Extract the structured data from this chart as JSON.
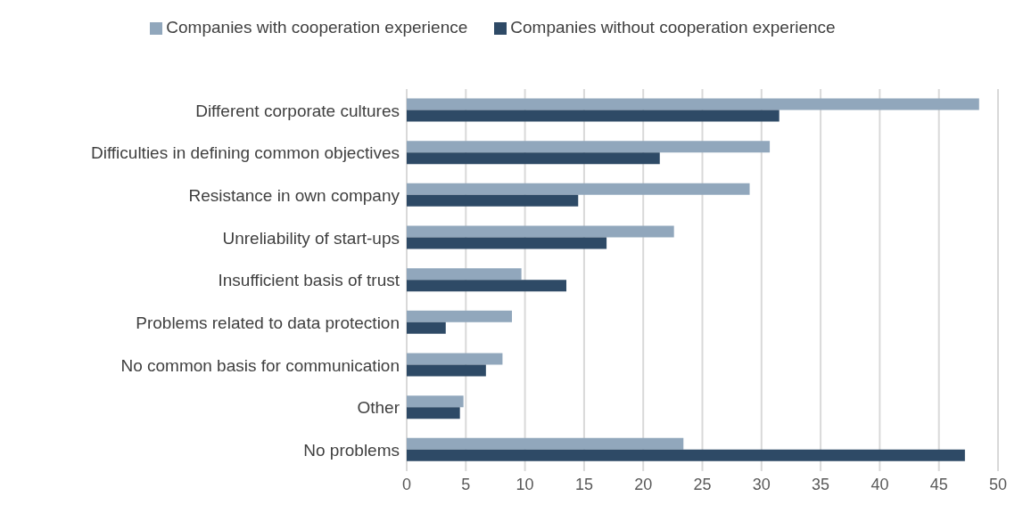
{
  "chart_data": {
    "type": "bar",
    "orientation": "horizontal",
    "categories": [
      "Different corporate cultures",
      "Difficulties in defining common objectives",
      "Resistance in own company",
      "Unreliability of start-ups",
      "Insufficient basis of trust",
      "Problems related to data protection",
      "No common basis for communication",
      "Other",
      "No problems"
    ],
    "series": [
      {
        "name": "Companies with cooperation experience",
        "color": "#91a7bc",
        "values": [
          48.4,
          30.7,
          29.0,
          22.6,
          9.7,
          8.9,
          8.1,
          4.8,
          23.4
        ]
      },
      {
        "name": "Companies without cooperation experience",
        "color": "#2e4a66",
        "values": [
          31.5,
          21.4,
          14.5,
          16.9,
          13.5,
          3.3,
          6.7,
          4.5,
          47.2
        ]
      }
    ],
    "xlim": [
      0,
      50
    ],
    "xticks": [
      0,
      5,
      10,
      15,
      20,
      25,
      30,
      35,
      40,
      45,
      50
    ],
    "grid": "x",
    "legend": "top"
  }
}
